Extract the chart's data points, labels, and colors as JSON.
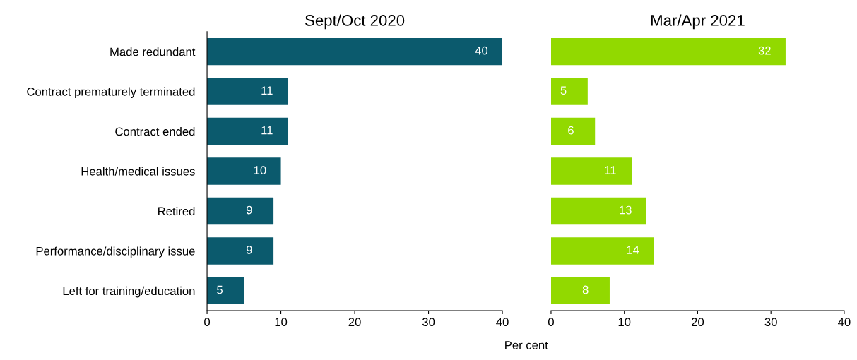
{
  "chart_data": [
    {
      "type": "bar",
      "orientation": "horizontal",
      "title": "Sept/Oct 2020",
      "xlabel": "Per cent",
      "categories": [
        "Made redundant",
        "Contract prematurely terminated",
        "Contract ended",
        "Health/medical issues",
        "Retired",
        "Performance/disciplinary issue",
        "Left for training/education"
      ],
      "values": [
        40,
        11,
        11,
        10,
        9,
        9,
        5
      ],
      "color": "#0b5a6d",
      "xlim": [
        0,
        40
      ],
      "xticks": [
        0,
        10,
        20,
        30,
        40
      ],
      "data_labels": true,
      "grid": false,
      "legend": false
    },
    {
      "type": "bar",
      "orientation": "horizontal",
      "title": "Mar/Apr 2021",
      "categories": [
        null,
        null,
        null,
        null,
        null,
        null,
        null
      ],
      "values": [
        32,
        5,
        6,
        11,
        13,
        14,
        8
      ],
      "color": "#92d900",
      "xlim": [
        0,
        40
      ],
      "xticks": [
        0,
        10,
        20,
        30,
        40
      ],
      "data_labels": true,
      "grid": false,
      "legend": false,
      "tick_labels": "x"
    }
  ]
}
